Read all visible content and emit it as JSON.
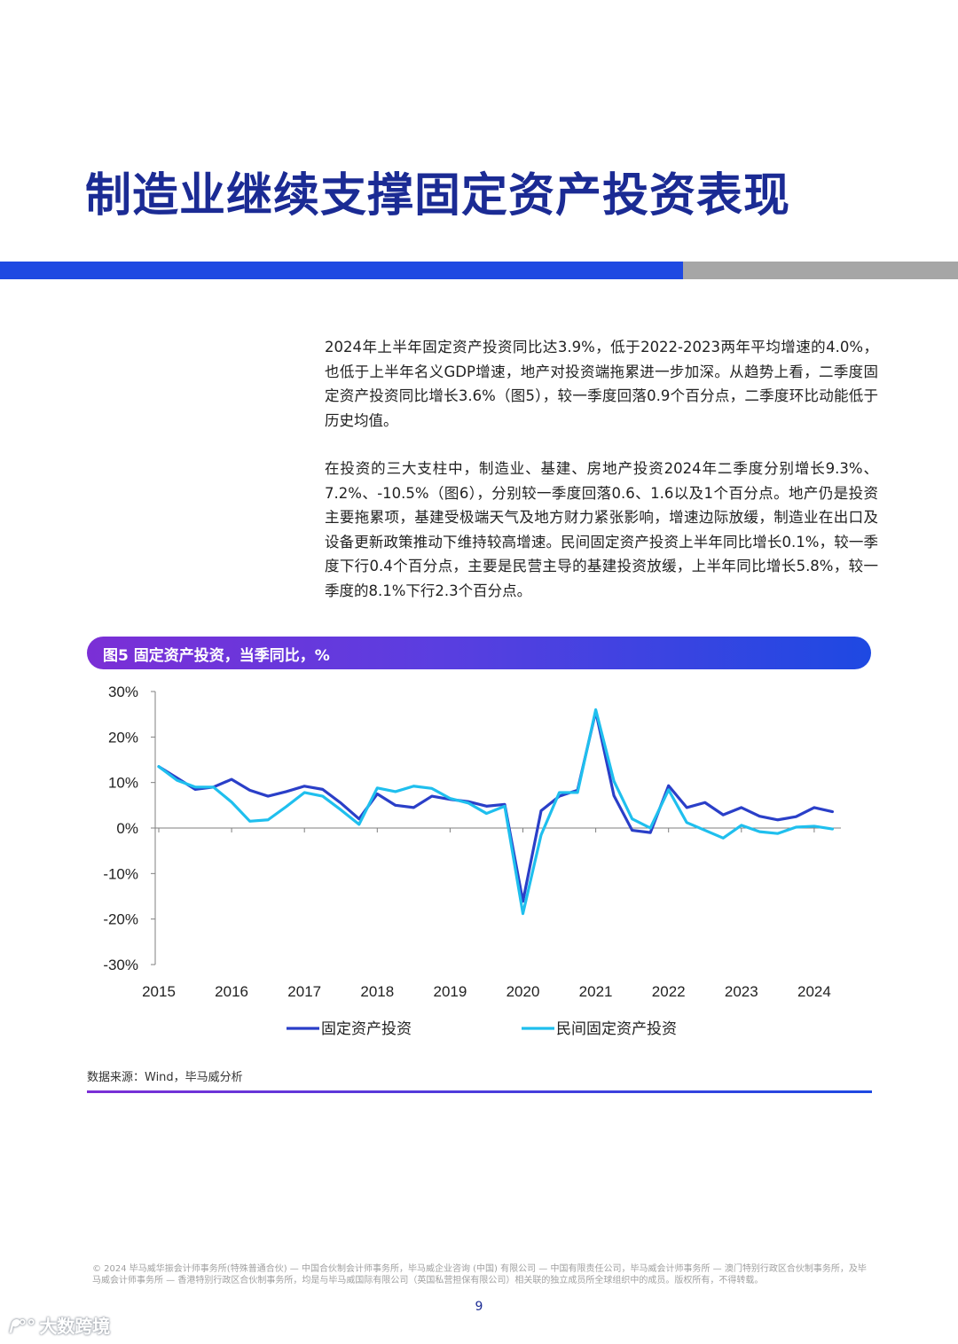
{
  "page": {
    "title": "制造业继续支撑固定资产投资表现",
    "paragraphs": [
      "2024年上半年固定资产投资同比达3.9%，低于2022-2023两年平均增速的4.0%，也低于上半年名义GDP增速，地产对投资端拖累进一步加深。从趋势上看，二季度固定资产投资同比增长3.6%（图5），较一季度回落0.9个百分点，二季度环比动能低于历史均值。",
      "在投资的三大支柱中，制造业、基建、房地产投资2024年二季度分别增长9.3%、7.2%、-10.5%（图6），分别较一季度回落0.6、1.6以及1个百分点。地产仍是投资主要拖累项，基建受极端天气及地方财力紧张影响，增速边际放缓，制造业在出口及设备更新政策推动下维持较高增速。民间固定资产投资上半年同比增长0.1%，较一季度下行0.4个百分点，主要是民营主导的基建投资放缓，上半年同比增长5.8%，较一季度的8.1%下行2.3个百分点。"
    ],
    "figure_title": "图5 固定资产投资，当季同比，%",
    "source": "数据来源：Wind，毕马威分析",
    "footer": "© 2024 毕马威华振会计师事务所(特殊普通合伙) — 中国合伙制会计师事务所，毕马威企业咨询 (中国) 有限公司 — 中国有限责任公司，毕马威会计师事务所 — 澳门特别行政区合伙制事务所，及毕马威会计师事务所 — 香港特别行政区合伙制事务所，均是与毕马威国际有限公司（英国私营担保有限公司）相关联的独立成员所全球组织中的成员。版权所有，不得转载。",
    "page_number": "9",
    "watermark": "大数跨境"
  },
  "colors": {
    "title": "#1b2b94",
    "band_blue": "#1e49e2",
    "band_gray": "#a6a6a6",
    "series_fixed": "#2a3fc8",
    "series_private": "#1fbfee"
  },
  "chart_data": {
    "type": "line",
    "title": "",
    "xlabel": "",
    "ylabel": "",
    "ylim": [
      -30,
      30
    ],
    "y_ticks": [
      "30%",
      "20%",
      "10%",
      "0%",
      "-10%",
      "-20%",
      "-30%"
    ],
    "x_tick_labels": [
      "2015",
      "2016",
      "2017",
      "2018",
      "2019",
      "2020",
      "2021",
      "2022",
      "2023",
      "2024"
    ],
    "x_start": 2015.0,
    "x_step": 0.25,
    "grid": false,
    "legend_position": "bottom",
    "series": [
      {
        "name": "固定资产投资",
        "values": [
          13.5,
          11.0,
          8.5,
          9.0,
          10.7,
          8.3,
          7.0,
          8.0,
          9.2,
          8.5,
          5.5,
          2.0,
          7.5,
          5.0,
          4.5,
          7.0,
          6.3,
          5.8,
          4.8,
          5.2,
          -16.1,
          3.8,
          7.0,
          8.3,
          25.6,
          7.1,
          -0.5,
          -1.0,
          9.3,
          4.5,
          5.6,
          2.9,
          4.5,
          2.6,
          1.8,
          2.5,
          4.5,
          3.6
        ]
      },
      {
        "name": "民间固定资产投资",
        "values": [
          13.5,
          10.5,
          9.0,
          9.0,
          5.7,
          1.5,
          1.8,
          4.7,
          7.8,
          7.0,
          4.0,
          0.8,
          8.8,
          8.0,
          9.2,
          8.7,
          6.5,
          5.5,
          3.2,
          4.8,
          -18.8,
          -1.5,
          7.8,
          7.8,
          26.0,
          10.3,
          2.0,
          0.0,
          8.4,
          1.2,
          -0.5,
          -2.2,
          0.6,
          -0.8,
          -1.2,
          0.2,
          0.4,
          -0.2
        ]
      }
    ]
  }
}
